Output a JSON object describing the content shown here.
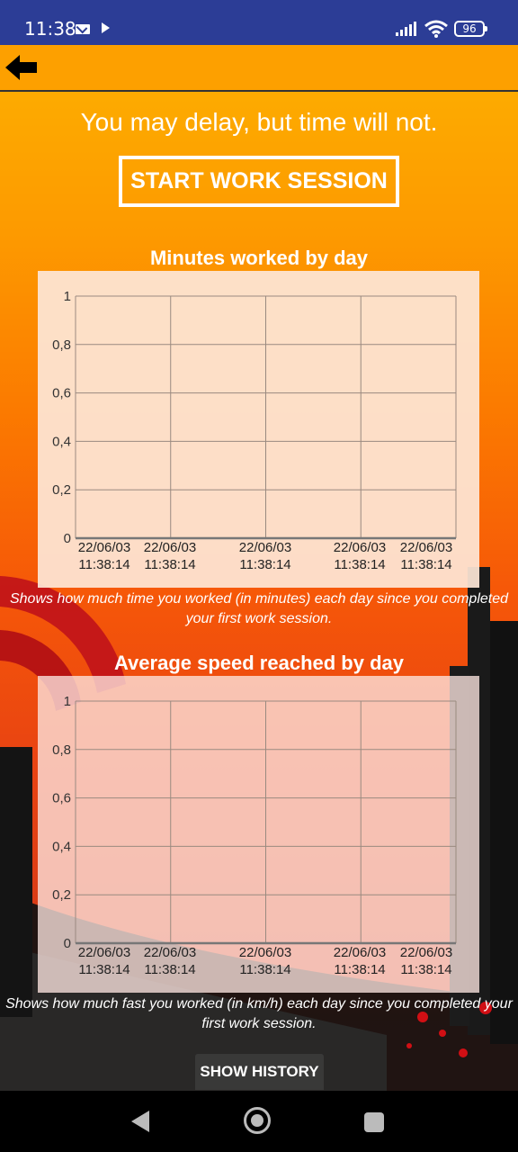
{
  "status_bar": {
    "time": "11:38",
    "battery": "96"
  },
  "header": {
    "back_icon": "arrow-left-icon"
  },
  "motto": "You may delay, but time will not.",
  "start_button": {
    "label": "START WORK SESSION"
  },
  "charts": [
    {
      "title": "Minutes worked by day",
      "caption": "Shows how much time you worked (in minutes) each day since you completed your first work session."
    },
    {
      "title": "Average speed reached by day",
      "caption": "Shows how much fast you worked (in km/h) each day since you completed your first work session."
    }
  ],
  "chart_data": [
    {
      "type": "line",
      "title": "Minutes worked by day",
      "ylim": [
        0,
        1
      ],
      "y_ticks": [
        "0",
        "0,2",
        "0,4",
        "0,6",
        "0,8",
        "1"
      ],
      "x_ticks": [
        [
          "22/06/03",
          "11:38:14"
        ],
        [
          "22/06/03",
          "11:38:14"
        ],
        [
          "22/06/03",
          "11:38:14"
        ],
        [
          "22/06/03",
          "11:38:14"
        ],
        [
          "22/06/03",
          "11:38:14"
        ]
      ],
      "grid": true,
      "values": []
    },
    {
      "type": "line",
      "title": "Average speed reached by day",
      "ylim": [
        0,
        1
      ],
      "y_ticks": [
        "0",
        "0,2",
        "0,4",
        "0,6",
        "0,8",
        "1"
      ],
      "x_ticks": [
        [
          "22/06/03",
          "11:38:14"
        ],
        [
          "22/06/03",
          "11:38:14"
        ],
        [
          "22/06/03",
          "11:38:14"
        ],
        [
          "22/06/03",
          "11:38:14"
        ],
        [
          "22/06/03",
          "11:38:14"
        ]
      ],
      "grid": true,
      "values": []
    }
  ],
  "history_button": {
    "label": "SHOW HISTORY"
  },
  "nav": {
    "back_icon": "nav-back-icon",
    "home_icon": "nav-home-icon",
    "recents_icon": "nav-recents-icon"
  }
}
